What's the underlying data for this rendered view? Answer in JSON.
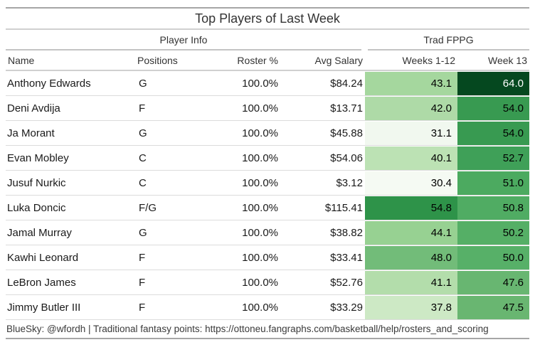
{
  "chart_data": {
    "type": "table",
    "title": "Top Players of Last Week",
    "column_groups": {
      "player_info": {
        "label": "Player Info",
        "span_columns": [
          "Name",
          "Positions",
          "Roster %",
          "Avg Salary"
        ]
      },
      "trad_fppg": {
        "label": "Trad FPPG",
        "span_columns": [
          "Weeks 1-12",
          "Week 13"
        ]
      }
    },
    "columns": {
      "name": "Name",
      "positions": "Positions",
      "roster_pct": "Roster %",
      "avg_salary": "Avg Salary",
      "weeks_1_12": "Weeks 1-12",
      "week_13": "Week 13"
    },
    "heatmap": {
      "applies_to": [
        "Weeks 1-12",
        "Week 13"
      ],
      "palette": "Greens",
      "value_domain": [
        30.4,
        64.0
      ],
      "low_color": "#f7fcf5",
      "high_color": "#05481f"
    },
    "rows": [
      {
        "name": "Anthony Edwards",
        "positions": "G",
        "roster_pct": "100.0%",
        "avg_salary": "$84.24",
        "weeks_1_12": "43.1",
        "week_13": "64.0",
        "weeks_1_12_bg": "#a5d79e",
        "weeks_1_12_fg": "#000000",
        "week_13_bg": "#05481f",
        "week_13_fg": "#ffffff"
      },
      {
        "name": "Deni Avdija",
        "positions": "F",
        "roster_pct": "100.0%",
        "avg_salary": "$13.71",
        "weeks_1_12": "42.0",
        "week_13": "54.0",
        "weeks_1_12_bg": "#aedaa7",
        "weeks_1_12_fg": "#000000",
        "week_13_bg": "#389a51",
        "week_13_fg": "#000000"
      },
      {
        "name": "Ja Morant",
        "positions": "G",
        "roster_pct": "100.0%",
        "avg_salary": "$45.88",
        "weeks_1_12": "31.1",
        "week_13": "54.0",
        "weeks_1_12_bg": "#f1f8ef",
        "weeks_1_12_fg": "#000000",
        "week_13_bg": "#389a51",
        "week_13_fg": "#000000"
      },
      {
        "name": "Evan Mobley",
        "positions": "C",
        "roster_pct": "100.0%",
        "avg_salary": "$54.06",
        "weeks_1_12": "40.1",
        "week_13": "52.7",
        "weeks_1_12_bg": "#bce2b4",
        "weeks_1_12_fg": "#000000",
        "week_13_bg": "#3fa058",
        "week_13_fg": "#000000"
      },
      {
        "name": "Jusuf Nurkic",
        "positions": "C",
        "roster_pct": "100.0%",
        "avg_salary": "$3.12",
        "weeks_1_12": "30.4",
        "week_13": "51.0",
        "weeks_1_12_bg": "#f5faf3",
        "weeks_1_12_fg": "#000000",
        "week_13_bg": "#4caa60",
        "week_13_fg": "#000000"
      },
      {
        "name": "Luka Doncic",
        "positions": "F/G",
        "roster_pct": "100.0%",
        "avg_salary": "$115.41",
        "weeks_1_12": "54.8",
        "week_13": "50.8",
        "weeks_1_12_bg": "#2e9349",
        "weeks_1_12_fg": "#000000",
        "week_13_bg": "#50ac63",
        "week_13_fg": "#000000"
      },
      {
        "name": "Jamal Murray",
        "positions": "G",
        "roster_pct": "100.0%",
        "avg_salary": "$38.82",
        "weeks_1_12": "44.1",
        "week_13": "50.2",
        "weeks_1_12_bg": "#97d192",
        "weeks_1_12_fg": "#000000",
        "week_13_bg": "#55af66",
        "week_13_fg": "#000000"
      },
      {
        "name": "Kawhi Leonard",
        "positions": "F",
        "roster_pct": "100.0%",
        "avg_salary": "$33.41",
        "weeks_1_12": "48.0",
        "week_13": "50.0",
        "weeks_1_12_bg": "#72bc79",
        "weeks_1_12_fg": "#000000",
        "week_13_bg": "#57b068",
        "week_13_fg": "#000000"
      },
      {
        "name": "LeBron James",
        "positions": "F",
        "roster_pct": "100.0%",
        "avg_salary": "$52.76",
        "weeks_1_12": "41.1",
        "week_13": "47.6",
        "weeks_1_12_bg": "#b3ddab",
        "weeks_1_12_fg": "#000000",
        "week_13_bg": "#68b671",
        "week_13_fg": "#000000"
      },
      {
        "name": "Jimmy Butler III",
        "positions": "F",
        "roster_pct": "100.0%",
        "avg_salary": "$33.29",
        "weeks_1_12": "37.8",
        "week_13": "47.5",
        "weeks_1_12_bg": "#cde9c5",
        "weeks_1_12_fg": "#000000",
        "week_13_bg": "#69b671",
        "week_13_fg": "#000000"
      }
    ],
    "source_note": "BlueSky: @wfordh | Traditional fantasy points: https://ottoneu.fangraphs.com/basketball/help/rosters_and_scoring"
  },
  "colors": {
    "border_strong": "#a6a6a6",
    "border_light": "#d0d0d0",
    "row_separator": "#dcdcdc",
    "heading_text": "#333333",
    "body_text": "#1a1a1a",
    "dark_cell_text": "#ffffff"
  }
}
